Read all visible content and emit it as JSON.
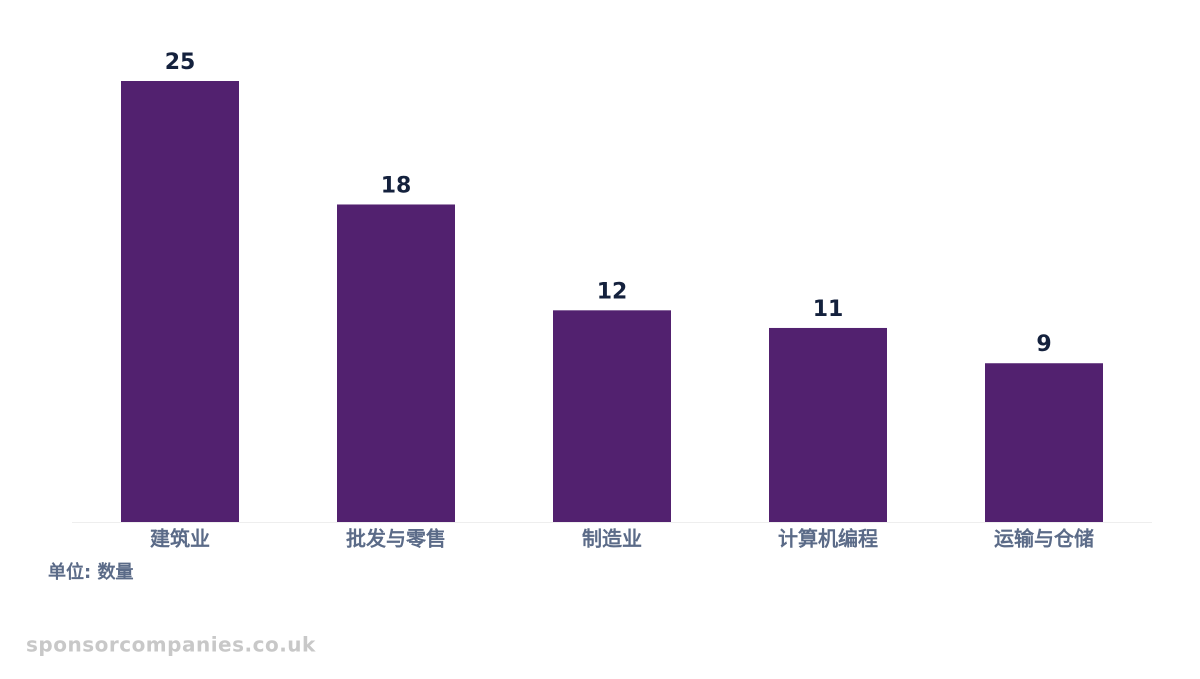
{
  "chart_data": {
    "type": "bar",
    "categories": [
      "建筑业",
      "批发与零售",
      "制造业",
      "计算机编程",
      "运输与仓储"
    ],
    "values": [
      25,
      18,
      12,
      11,
      9
    ],
    "color": "#52216f",
    "ylim": [
      0,
      25
    ],
    "unit_label": "单位: 数量",
    "watermark": "sponsorcompanies.co.uk"
  }
}
